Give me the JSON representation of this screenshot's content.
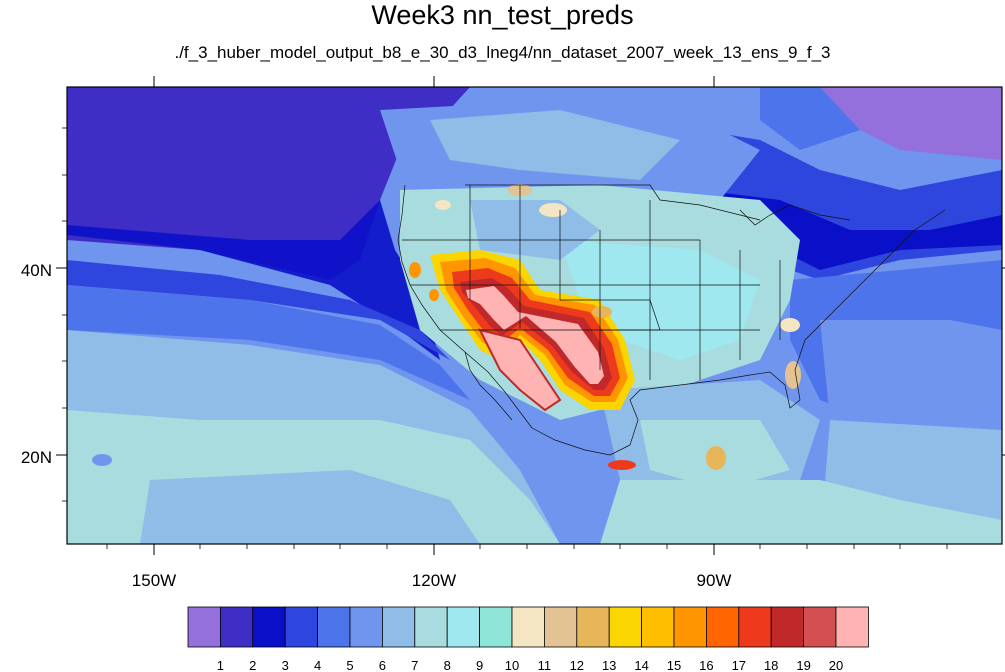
{
  "title": "Week3 nn_test_preds",
  "subtitle": "./f_3_huber_model_output_b8_e_30_d3_lneg4/nn_dataset_2007_week_13_ens_9_f_3",
  "map": {
    "projection": "cylindrical equidistant",
    "lon_range": [
      -160,
      -62
    ],
    "lat_range": [
      10,
      59
    ],
    "lat_tick_labels": [
      "40N",
      "20N"
    ],
    "lon_tick_labels": [
      "150W",
      "120W",
      "90W"
    ]
  },
  "colorbar": {
    "labels": [
      "1",
      "2",
      "3",
      "4",
      "5",
      "6",
      "7",
      "8",
      "9",
      "10",
      "11",
      "12",
      "13",
      "14",
      "15",
      "16",
      "17",
      "18",
      "19",
      "20"
    ],
    "colors": [
      "#9370db",
      "#3f2ec6",
      "#0a10c8",
      "#2f46de",
      "#4d74ea",
      "#6f95ee",
      "#8fbde8",
      "#a9dcde",
      "#9fe8ef",
      "#8ee6d8",
      "#f4e6c2",
      "#e3c393",
      "#e8b65a",
      "#fbd500",
      "#ffbe00",
      "#ff9500",
      "#ff6400",
      "#ee3a1c",
      "#c0282a",
      "#d44f52",
      "#ffb3b3"
    ]
  }
}
